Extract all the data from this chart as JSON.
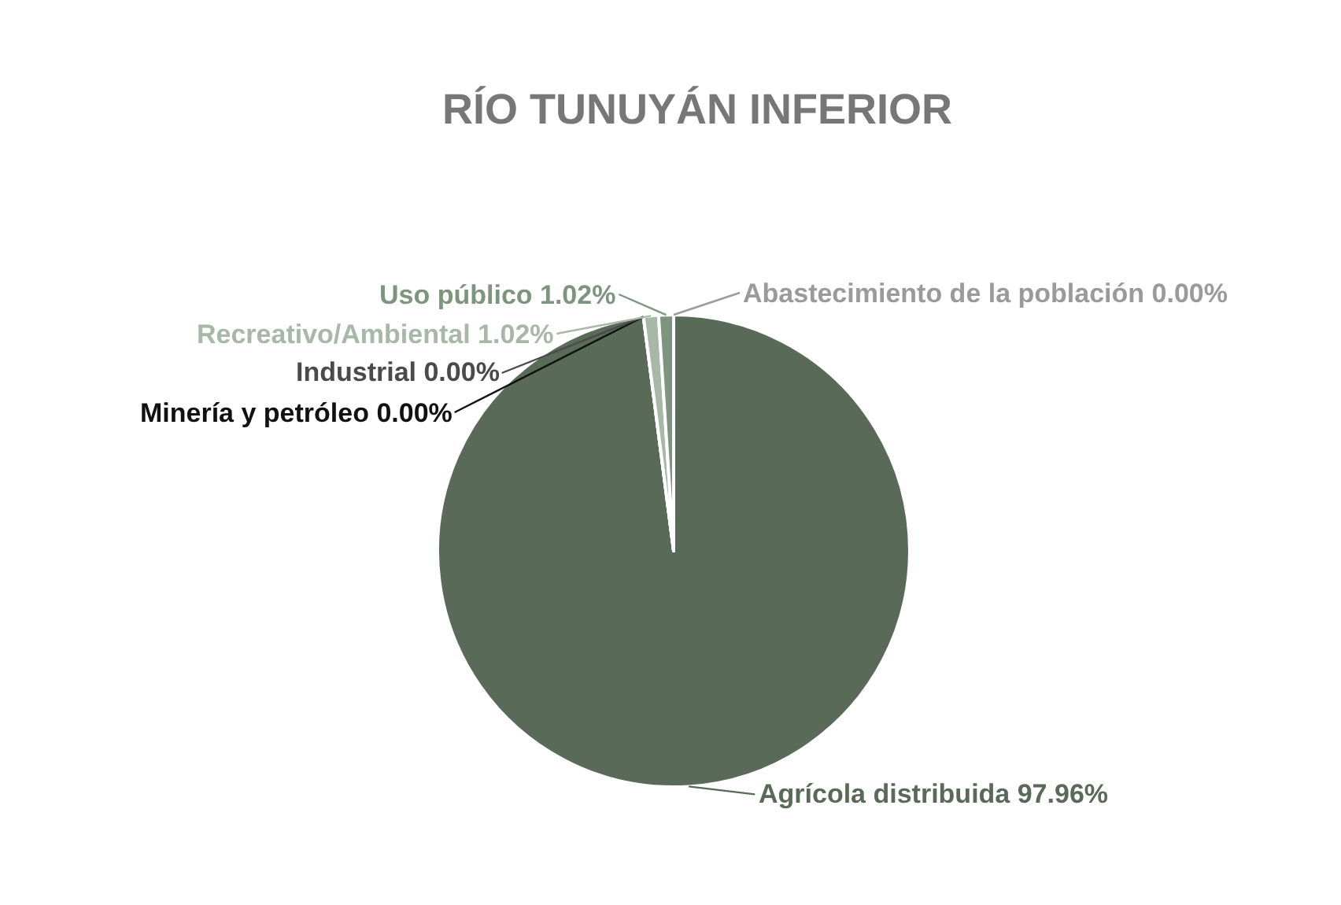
{
  "chart_data": {
    "type": "pie",
    "title": "RÍO TUNUYÁN INFERIOR",
    "categories": [
      "Abastecimiento de la población",
      "Agrícola distribuida",
      "Minería y petróleo",
      "Industrial",
      "Recreativo/Ambiental",
      "Uso público"
    ],
    "values": [
      0,
      97.96,
      0,
      0,
      1.02,
      1.02
    ],
    "value_labels": [
      "0.00%",
      "97.96%",
      "0.00%",
      "0.00%",
      "1.02%",
      "1.02%"
    ],
    "colors": [
      "#9a9a9a",
      "#5a6a58",
      "#111111",
      "#4a4a4a",
      "#a7b8a7",
      "#7d957d"
    ]
  }
}
